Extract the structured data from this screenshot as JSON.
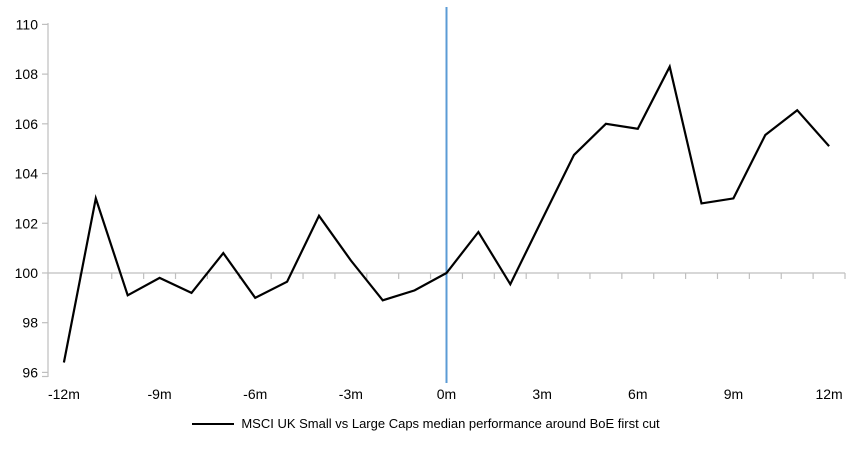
{
  "chart_data": {
    "type": "line",
    "title": "",
    "xlabel": "",
    "ylabel": "",
    "x": [
      -12,
      -11,
      -10,
      -9,
      -8,
      -7,
      -6,
      -5,
      -4,
      -3,
      -2,
      -1,
      0,
      1,
      2,
      3,
      4,
      5,
      6,
      7,
      8,
      9,
      10,
      11,
      12
    ],
    "series": [
      {
        "name": "MSCI UK Small vs Large Caps median performance around BoE first cut",
        "values": [
          96.4,
          103.0,
          99.1,
          99.8,
          99.2,
          100.8,
          99.0,
          99.65,
          102.3,
          100.5,
          98.9,
          99.3,
          100.0,
          101.65,
          99.55,
          102.15,
          104.75,
          106.0,
          105.8,
          108.3,
          102.8,
          103.0,
          105.55,
          106.55,
          105.1
        ]
      }
    ],
    "y_ticks": [
      96,
      98,
      100,
      102,
      104,
      106,
      108,
      110
    ],
    "ylim": [
      96,
      110.7
    ],
    "xlim": [
      -12.5,
      12.5
    ],
    "x_tick_months": [
      -12,
      -9,
      -6,
      -3,
      0,
      3,
      6,
      9,
      12
    ],
    "x_tick_labels": [
      "-12m",
      "-9m",
      "-6m",
      "-3m",
      "0m",
      "3m",
      "6m",
      "9m",
      "12m"
    ],
    "baseline_value": 100,
    "event_line_x": 0,
    "grid": "baseline-only",
    "legend_position": "bottom-center"
  },
  "legend": {
    "label": "MSCI UK Small vs Large Caps median performance around BoE first cut"
  },
  "colors": {
    "series_line": "#000000",
    "event_line": "#5B9BD5",
    "axis_gray": "#BFBFBF",
    "text": "#000000",
    "background": "#FFFFFF"
  }
}
